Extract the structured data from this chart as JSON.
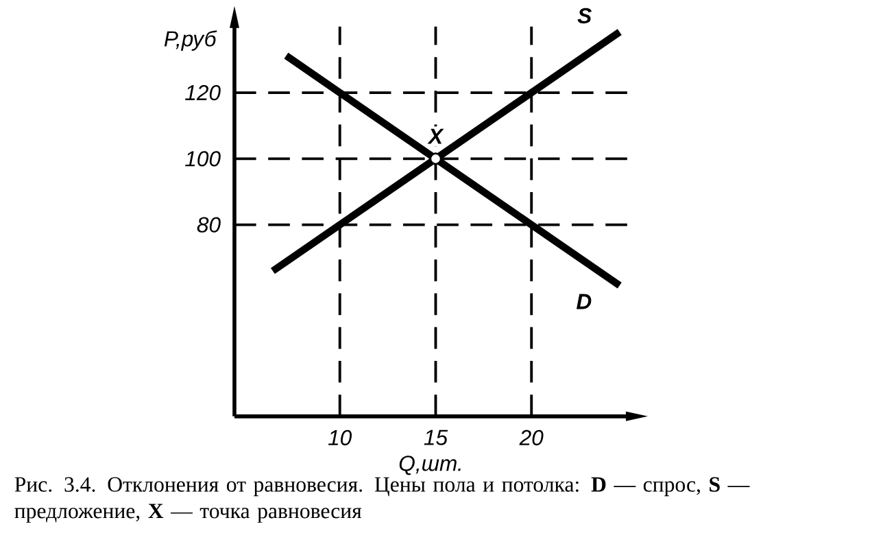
{
  "chart_data": {
    "type": "line",
    "xlabel": "Q,шт.",
    "ylabel": "P,руб",
    "xlim": [
      4.5,
      25
    ],
    "ylim": [
      22,
      140
    ],
    "xticks": [
      10,
      15,
      20
    ],
    "yticks": [
      80,
      100,
      120
    ],
    "series": [
      {
        "name": "S",
        "color": "#000000",
        "x": [
          6.5,
          10,
          15,
          20,
          24.6
        ],
        "values": [
          66,
          80,
          100,
          120,
          138.4
        ]
      },
      {
        "name": "D",
        "color": "#000000",
        "x": [
          7.2,
          10,
          15,
          20,
          24.6
        ],
        "values": [
          131.2,
          120,
          100,
          80,
          61.6
        ]
      }
    ],
    "ref_lines": [
      {
        "axis": "y",
        "value": 120,
        "line_style": "dashed"
      },
      {
        "axis": "y",
        "value": 100,
        "line_style": "dashed"
      },
      {
        "axis": "y",
        "value": 80,
        "line_style": "dashed"
      },
      {
        "axis": "x",
        "value": 10,
        "line_style": "dashed"
      },
      {
        "axis": "x",
        "value": 15,
        "line_style": "dashed"
      },
      {
        "axis": "x",
        "value": 20,
        "line_style": "dashed"
      }
    ],
    "annotations": [
      {
        "text": "X",
        "x": 15,
        "y": 100
      },
      "Рис. 3.4. Отклонения от равновесия. Цены пола и потолка: **D** — спрос, **S** — предложение, **X** — точка равновесия"
    ]
  }
}
